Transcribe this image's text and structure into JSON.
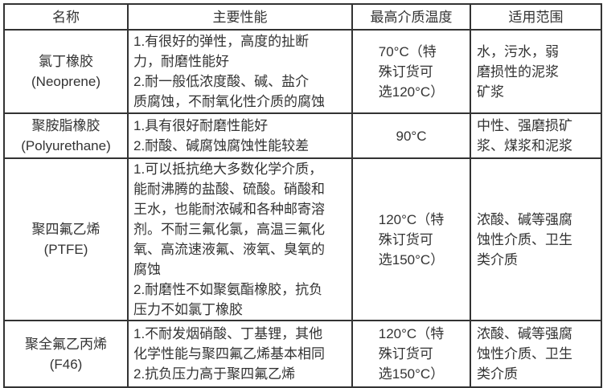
{
  "page": {
    "background_color": "#ffffff",
    "border_color": "#333333",
    "text_color": "#333333"
  },
  "table": {
    "headers": [
      "名称",
      "主要性能",
      "最高介质温度",
      "适用范围"
    ],
    "rows": [
      {
        "name": [
          "氯丁橡胶",
          "(Neoprene)"
        ],
        "properties": [
          "1.有很好的弹性，高度的扯断",
          "力，耐磨性能好",
          "2.耐一般低浓度酸、碱、盐介",
          "质腐蚀，不耐氧化性介质的腐蚀"
        ],
        "max_temp": [
          "70°C（特",
          "殊订货可",
          "选120°C）"
        ],
        "application": [
          "水，污水，弱",
          "磨损性的泥浆",
          "矿浆"
        ]
      },
      {
        "name": [
          "聚胺脂橡胶",
          "(Polyurethane)"
        ],
        "properties": [
          "1.具有很好耐磨性能好",
          "2.耐酸、碱腐蚀腐蚀性能较差"
        ],
        "max_temp": [
          "90°C"
        ],
        "application": [
          "中性、强磨损矿",
          "浆、煤浆和泥浆"
        ]
      },
      {
        "name": [
          "聚四氟乙烯",
          "(PTFE)"
        ],
        "properties": [
          "1.可以抵抗绝大多数化学介质，",
          "能耐沸腾的盐酸、硫酸。硝酸和",
          "王水，也能耐浓碱和各种邮寄溶",
          "剂。不耐三氟化氯，高温三氟化",
          "氧、高流速液氟、液氧、臭氧的",
          "腐蚀",
          "2.耐磨性不如聚氨酯橡胶，抗负",
          "压力不如氯丁橡胶"
        ],
        "max_temp": [
          "120°C（特",
          "殊订货可",
          "选150°C）"
        ],
        "application": [
          "浓酸、碱等强腐",
          "蚀性介质、卫生",
          "类介质"
        ]
      },
      {
        "name": [
          "聚全氟乙丙烯",
          "(F46)"
        ],
        "properties": [
          "1.不耐发烟硝酸、丁基锂，其他",
          "化学性能与聚四氟乙烯基本相同",
          "2.抗负压力高于聚四氟乙烯"
        ],
        "max_temp": [
          "120°C（特",
          "殊订货可",
          "选150°C）"
        ],
        "application": [
          "浓酸、碱等强腐",
          "蚀性介质、卫生",
          "类介质"
        ]
      }
    ]
  }
}
